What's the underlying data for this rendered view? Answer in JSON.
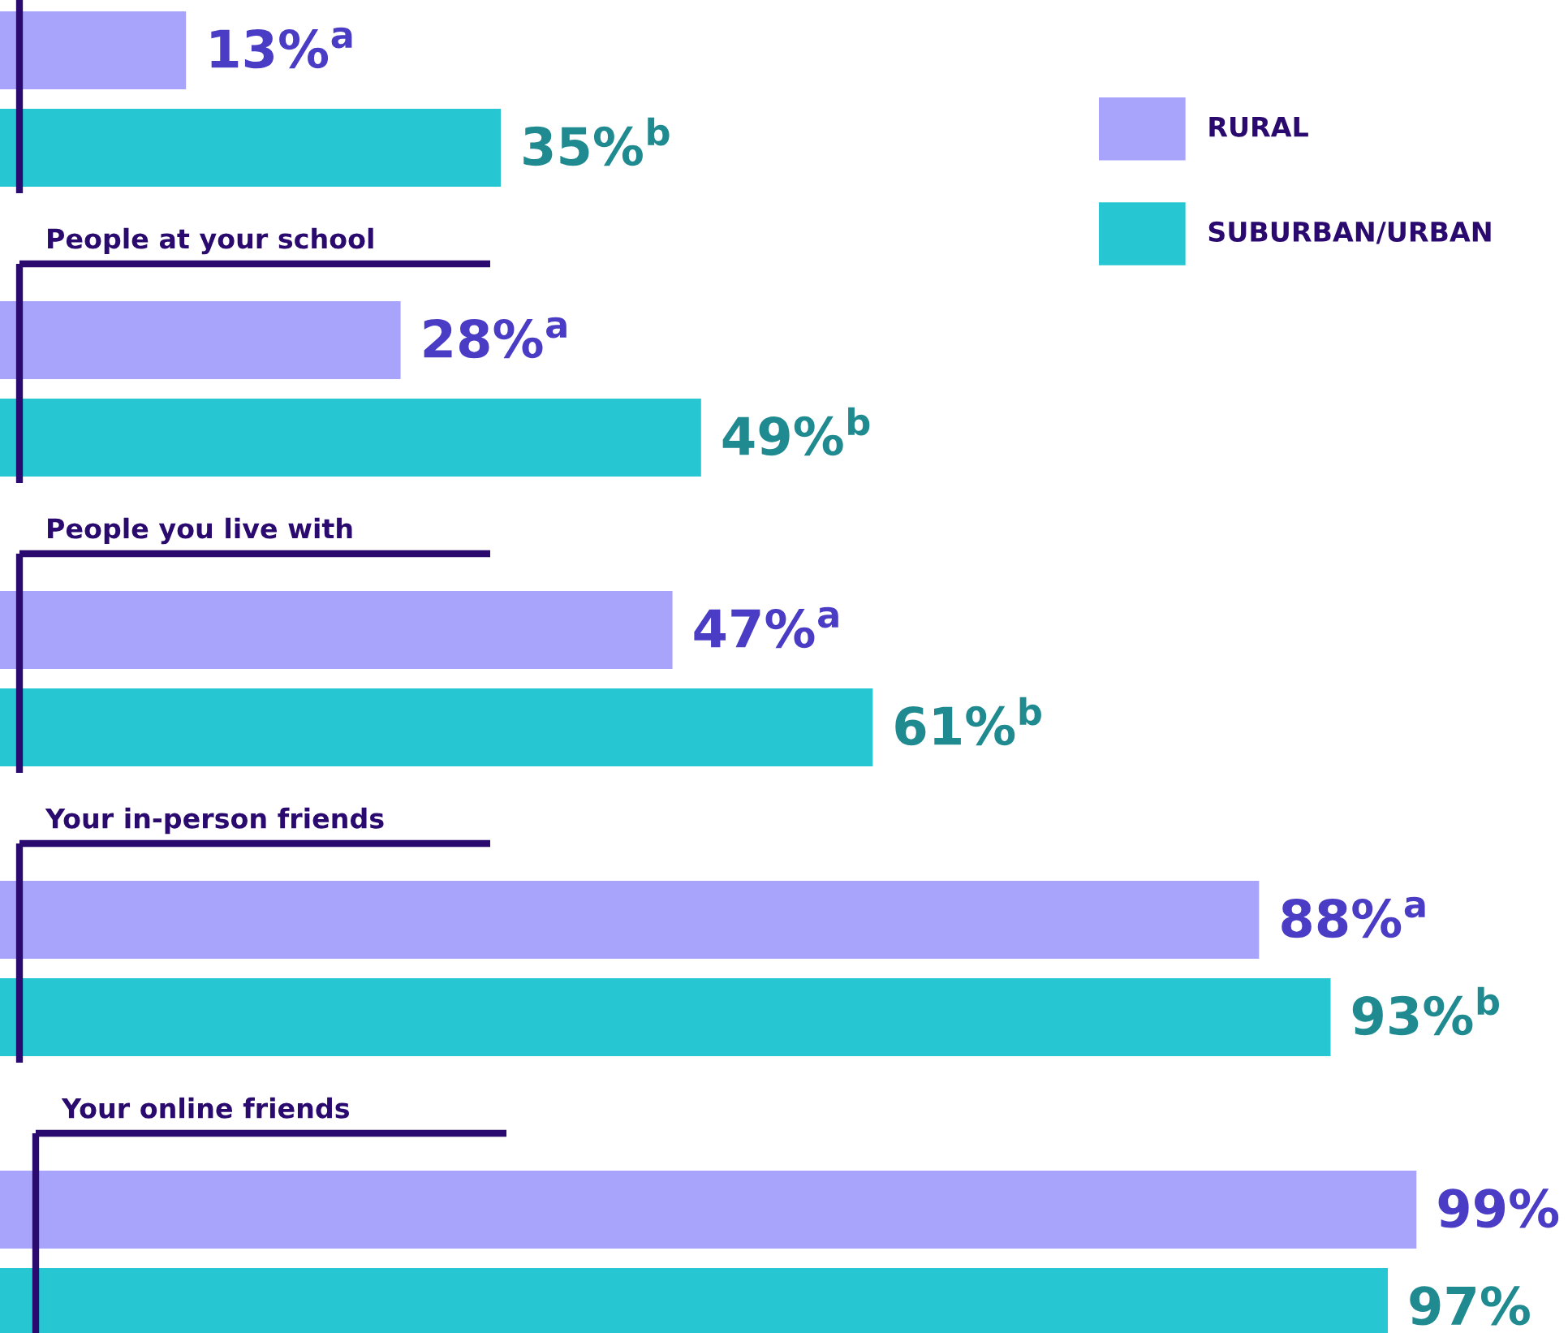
{
  "chart_data": {
    "type": "bar",
    "orientation": "horizontal",
    "categories": [
      null,
      "People at your school",
      "People you live with",
      "Your in-person friends",
      "Your online friends"
    ],
    "series": [
      {
        "name": "RURAL",
        "color": "#a8a4fb",
        "values": [
          13,
          28,
          47,
          88,
          99
        ],
        "value_labels": [
          "13%$^{a}$",
          "28%$^{a}$",
          "47%$^{a}$",
          "88%$^{a}$",
          "99%"
        ]
      },
      {
        "name": "SUBURBAN/URBAN",
        "color": "#26c7d2",
        "values": [
          35,
          49,
          61,
          93,
          97
        ],
        "value_labels": [
          "35%$^{b}$",
          "49%$^{b}$",
          "61%$^{b}$",
          "93%$^{b}$",
          "97%"
        ]
      }
    ],
    "legend": "top right"
  }
}
